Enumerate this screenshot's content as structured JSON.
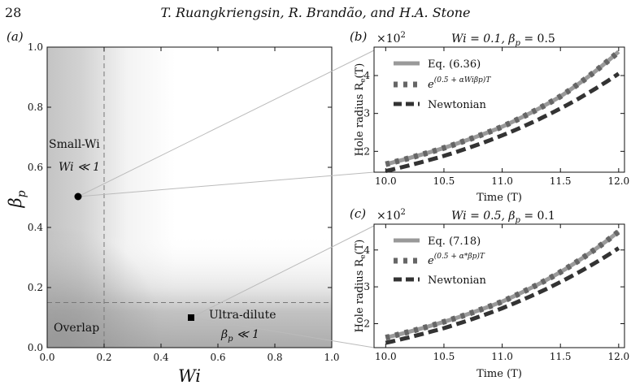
{
  "page": {
    "number": "28",
    "running_header": "T. Ruangkriengsin, R. Brandão, and H.A. Stone"
  },
  "panel_a": {
    "label": "(a)",
    "xlabel": "Wi",
    "ylabel": "β",
    "ylabel_sub": "p",
    "x_ticks": [
      "0.0",
      "0.2",
      "0.4",
      "0.6",
      "0.8",
      "1.0"
    ],
    "y_ticks": [
      "0.0",
      "0.2",
      "0.4",
      "0.6",
      "0.8",
      "1.0"
    ],
    "xlim": [
      0,
      1
    ],
    "ylim": [
      0,
      1
    ],
    "region_labels": {
      "small_wi_line1": "Small-Wi",
      "small_wi_line2": "Wi ≪ 1",
      "overlap": "Overlap",
      "ultra_dilute_line1": "Ultra-dilute",
      "ultra_dilute_line2": "β",
      "ultra_dilute_sub": "p",
      "ultra_dilute_tail": " ≪ 1"
    },
    "thresholds": {
      "wi": 0.2,
      "beta_p": 0.15
    },
    "points": [
      {
        "wi": 0.1,
        "beta_p": 0.5,
        "marker": "circle"
      },
      {
        "wi": 0.5,
        "beta_p": 0.1,
        "marker": "square"
      }
    ]
  },
  "panel_b": {
    "label": "(b)",
    "title": "Wi = 0.1, β",
    "title_sub": "p",
    "title_tail": " = 0.5",
    "multiplier": "×10",
    "multiplier_exp": "2",
    "xlabel": "Time (T)",
    "ylabel": "Hole radius R",
    "ylabel_sub": "e",
    "ylabel_tail": "(T)",
    "x_ticks": [
      "10.0",
      "10.5",
      "11.0",
      "11.5",
      "12.0"
    ],
    "y_ticks": [
      "2",
      "3",
      "4"
    ],
    "legend": [
      {
        "text": "Eq. (6.36)",
        "style": "solid",
        "color": "#999999"
      },
      {
        "text": "e",
        "sup": "(0.5 + αWiβp)T",
        "style": "dotted",
        "color": "#666666"
      },
      {
        "text": "Newtonian",
        "style": "dashed",
        "color": "#333333"
      }
    ]
  },
  "panel_c": {
    "label": "(c)",
    "title": "Wi = 0.5, β",
    "title_sub": "p",
    "title_tail": " = 0.1",
    "multiplier": "×10",
    "multiplier_exp": "2",
    "xlabel": "Time (T)",
    "ylabel": "Hole radius R",
    "ylabel_sub": "e",
    "ylabel_tail": "(T)",
    "x_ticks": [
      "10.0",
      "10.5",
      "11.0",
      "11.5",
      "12.0"
    ],
    "y_ticks": [
      "2",
      "3",
      "4"
    ],
    "legend": [
      {
        "text": "Eq. (7.18)",
        "style": "solid",
        "color": "#999999"
      },
      {
        "text": "e",
        "sup": "(0.5 + α*βp)T",
        "style": "dotted",
        "color": "#666666"
      },
      {
        "text": "Newtonian",
        "style": "dashed",
        "color": "#333333"
      }
    ]
  },
  "chart_data": [
    {
      "panel": "b",
      "type": "line",
      "x": [
        10.0,
        10.5,
        11.0,
        11.5,
        12.0
      ],
      "xlim": [
        9.9,
        12.05
      ],
      "ylim": [
        1.45,
        4.75
      ],
      "y_unit_multiplier": 100,
      "series": [
        {
          "name": "Eq. (6.36)",
          "values": [
            1.66,
            2.09,
            2.65,
            3.45,
            4.63
          ]
        },
        {
          "name": "e^{(0.5+αWiβp)T}",
          "values": [
            1.66,
            2.09,
            2.65,
            3.45,
            4.63
          ]
        },
        {
          "name": "Newtonian",
          "values": [
            1.48,
            1.88,
            2.42,
            3.13,
            4.05
          ]
        }
      ]
    },
    {
      "panel": "c",
      "type": "line",
      "x": [
        10.0,
        10.5,
        11.0,
        11.5,
        12.0
      ],
      "xlim": [
        9.9,
        12.05
      ],
      "ylim": [
        1.35,
        4.7
      ],
      "y_unit_multiplier": 100,
      "series": [
        {
          "name": "Eq. (7.18)",
          "values": [
            1.62,
            2.05,
            2.6,
            3.4,
            4.5
          ]
        },
        {
          "name": "e^{(0.5+α*βp)T}",
          "values": [
            1.62,
            2.05,
            2.6,
            3.4,
            4.5
          ]
        },
        {
          "name": "Newtonian",
          "values": [
            1.48,
            1.88,
            2.42,
            3.13,
            4.05
          ]
        }
      ]
    }
  ]
}
